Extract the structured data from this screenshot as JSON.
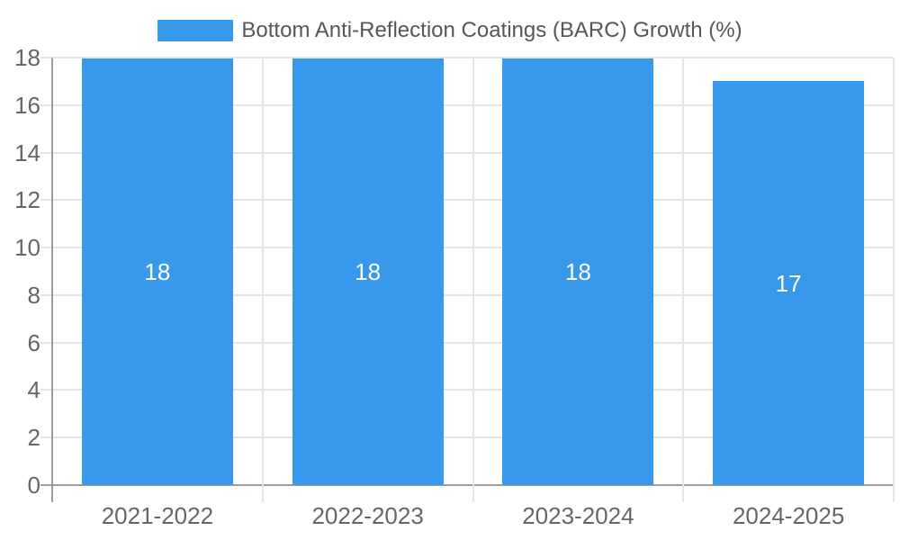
{
  "chart_data": {
    "type": "bar",
    "legend": "Bottom Anti-Reflection Coatings (BARC) Growth (%)",
    "categories": [
      "2021-2022",
      "2022-2023",
      "2023-2024",
      "2024-2025"
    ],
    "values": [
      18,
      18,
      18,
      17
    ],
    "bar_labels": [
      "18",
      "18",
      "18",
      "17"
    ],
    "ylim": [
      0,
      18
    ],
    "ytick_step": 2,
    "ytick_labels": [
      "0",
      "2",
      "4",
      "6",
      "8",
      "10",
      "12",
      "14",
      "16",
      "18"
    ],
    "legend_position": "top-center",
    "grid": true,
    "value_labels_position": "inside-center",
    "colors": {
      "bar": "#3899EC",
      "gridline": "#E5E5E5",
      "axis": "#9C9C9C",
      "tick_text": "#666666",
      "legend_text": "#54575C",
      "value_label": "#FFFFFF",
      "background": "#FFFFFF"
    }
  }
}
